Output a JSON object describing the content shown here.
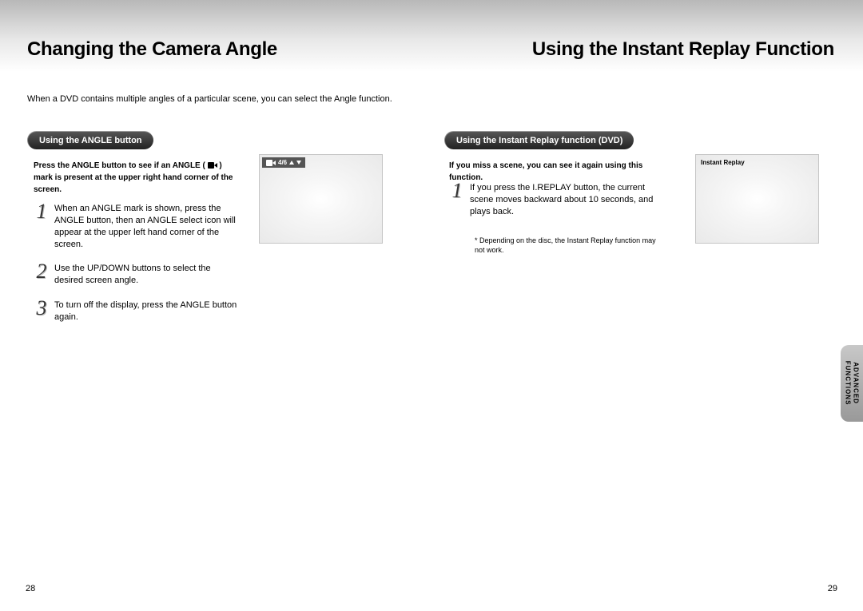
{
  "colors": {
    "gradient_top": "#b8b8b8",
    "pill_bg": "#2e2e2e",
    "screen_border": "#c5c5c5",
    "sidetab": "#b0b0b0"
  },
  "left_page": {
    "heading": "Changing the Camera Angle",
    "intro": "When a DVD contains multiple angles of a particular scene, you can select the Angle function.",
    "pill": "Using the ANGLE button",
    "instruction_pre": "Press the ANGLE button to see if an ANGLE (",
    "instruction_post": ") mark is present at the upper right hand corner of the screen.",
    "steps": [
      {
        "n": "1",
        "text": "When an ANGLE mark is shown, press the ANGLE button, then an ANGLE select icon will appear at the upper left hand corner of the screen."
      },
      {
        "n": "2",
        "text": "Use the UP/DOWN buttons to select the desired screen angle."
      },
      {
        "n": "3",
        "text": "To turn off the display, press the ANGLE button again."
      }
    ],
    "osd_value": "4/6",
    "pagenum": "28"
  },
  "right_page": {
    "heading": "Using the Instant Replay Function",
    "pill": "Using the Instant Replay function (DVD)",
    "instruction": "If you miss a scene, you can see it again using this function.",
    "steps": [
      {
        "n": "1",
        "text": "If you press the I.REPLAY button, the current scene moves backward about 10 seconds, and plays back."
      }
    ],
    "note": "* Depending on the disc, the Instant Replay function may not work.",
    "osd_label": "Instant Replay",
    "sidetab_line1": "ADVANCED",
    "sidetab_line2": "FUNCTIONS",
    "pagenum": "29"
  }
}
